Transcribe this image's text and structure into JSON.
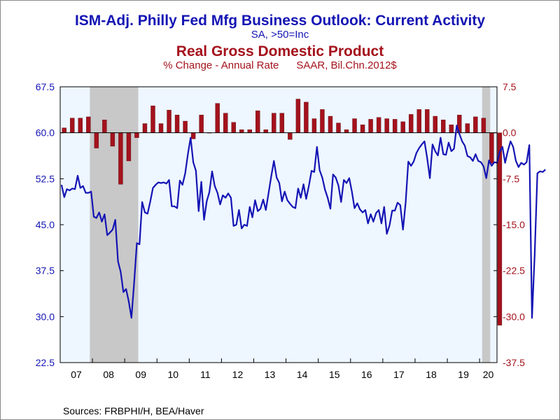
{
  "chart_data": {
    "type": "line+bar",
    "title": "ISM-Adj. Philly Fed Mfg Business Outlook: Current Activity",
    "subtitle": "SA, >50=Inc",
    "title2": "Real Gross Domestic Product",
    "subtitle2": "% Change - Annual Rate",
    "subtitle2_units": "SAAR, Bil.Chn.2012$",
    "source": "Sources:  FRBPHI/H, BEA/Haver",
    "left_axis": {
      "min": 22.5,
      "max": 67.5,
      "ticks": [
        "67.5",
        "60.0",
        "52.5",
        "45.0",
        "37.5",
        "30.0",
        "22.5"
      ],
      "color": "#1414b4"
    },
    "right_axis": {
      "min": -37.5,
      "max": 7.5,
      "ticks": [
        "7.5",
        "0.0",
        "-7.5",
        "-15.0",
        "-22.5",
        "-30.0",
        "-37.5"
      ],
      "color": "#a4121c"
    },
    "x_labels": [
      "07",
      "08",
      "09",
      "10",
      "11",
      "12",
      "13",
      "14",
      "15",
      "16",
      "17",
      "18",
      "19",
      "20"
    ],
    "x_range": [
      2007.0,
      2020.54
    ],
    "recessions": [
      [
        2007.92,
        2009.42
      ],
      [
        2020.08,
        2020.33
      ]
    ],
    "colors": {
      "line": "#1414b4",
      "bar": "#a4121c",
      "recession": "#c8c8c8",
      "plot_bg": "#eef6ff"
    },
    "series": [
      {
        "name": "ISM-Adj. Philly Fed Mfg Business Outlook",
        "axis": "left",
        "values": [
          51.5,
          49.5,
          50.8,
          50.6,
          50.9,
          50.8,
          53.0,
          51.0,
          51.3,
          50.2,
          50.2,
          50.4,
          46.3,
          46.1,
          47.0,
          45.5,
          46.7,
          43.3,
          43.7,
          44.2,
          45.8,
          39.0,
          37.3,
          34.0,
          34.5,
          32.5,
          29.8,
          35.5,
          42.0,
          41.8,
          48.7,
          47.0,
          46.8,
          48.8,
          51.0,
          51.5,
          51.9,
          51.8,
          51.9,
          51.7,
          52.3,
          48.0,
          48.0,
          47.7,
          52.2,
          51.5,
          53.4,
          56.5,
          59.2,
          55.2,
          53.8,
          47.2,
          52.0,
          45.8,
          48.8,
          50.3,
          53.7,
          51.3,
          50.2,
          48.3,
          49.8,
          49.4,
          50.1,
          49.4,
          44.8,
          45.0,
          47.4,
          44.4,
          45.0,
          44.8,
          47.9,
          46.2,
          49.0,
          47.2,
          47.6,
          49.1,
          47.4,
          50.1,
          52.9,
          55.4,
          52.7,
          51.8,
          48.8,
          50.4,
          49.0,
          48.4,
          47.9,
          47.7,
          50.9,
          49.4,
          51.6,
          49.2,
          51.3,
          53.8,
          53.6,
          57.7,
          53.9,
          52.7,
          50.7,
          49.4,
          47.6,
          53.2,
          52.7,
          51.4,
          48.7,
          52.3,
          51.8,
          52.6,
          50.4,
          47.7,
          48.5,
          47.5,
          47.0,
          47.4,
          45.2,
          46.7,
          45.5,
          46.9,
          47.4,
          45.2,
          47.9,
          43.5,
          44.9,
          47.3,
          47.3,
          48.6,
          48.2,
          44.2,
          48.6,
          55.3,
          54.6,
          55.3,
          56.7,
          57.5,
          58.1,
          58.6,
          55.9,
          52.6,
          58.1,
          57.0,
          56.3,
          59.2,
          56.5,
          56.4,
          58.4,
          57.0,
          57.4,
          61.2,
          59.8,
          58.6,
          57.9,
          56.2,
          56.0,
          55.4,
          56.5,
          55.4,
          55.2,
          54.5,
          52.6,
          55.5,
          54.6,
          55.2,
          55.1,
          56.9,
          57.7,
          55.1,
          57.0,
          58.6,
          57.7,
          55.4,
          54.4,
          55.1,
          54.8,
          55.2,
          58.0,
          29.8,
          40.0,
          53.4,
          53.7,
          53.6,
          54.0
        ]
      },
      {
        "name": "Real Gross Domestic Product",
        "axis": "right",
        "values": [
          0.8,
          2.4,
          2.4,
          2.6,
          -2.5,
          2.1,
          -2.2,
          -8.4,
          -4.6,
          -0.8,
          1.5,
          4.4,
          1.5,
          3.7,
          2.9,
          1.9,
          -1.0,
          2.9,
          0.0,
          4.8,
          3.2,
          1.7,
          0.5,
          0.5,
          3.6,
          0.5,
          3.2,
          3.2,
          -1.1,
          5.5,
          5.0,
          2.3,
          3.8,
          2.7,
          1.6,
          0.5,
          2.3,
          1.3,
          2.2,
          2.5,
          2.3,
          2.2,
          1.8,
          3.0,
          3.8,
          3.8,
          2.7,
          2.1,
          1.3,
          2.9,
          1.5,
          2.6,
          2.4,
          -5.0,
          -31.4
        ]
      }
    ]
  }
}
